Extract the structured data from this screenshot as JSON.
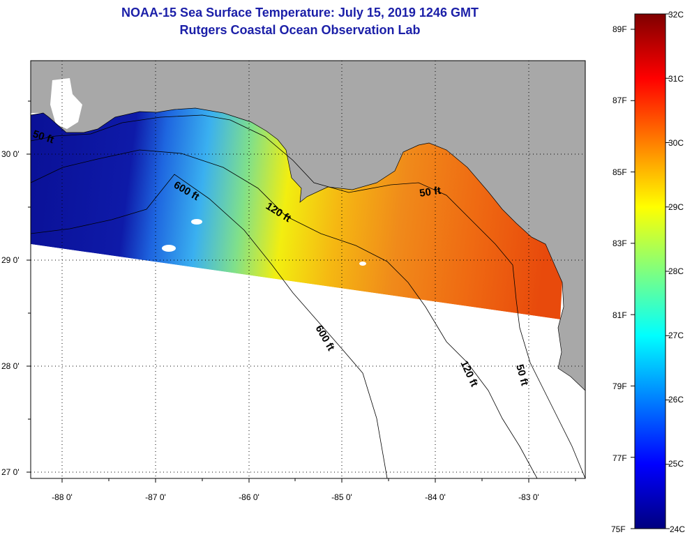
{
  "title": {
    "line1": "NOAA-15 Sea Surface Temperature:  July 15, 2019 1246 GMT",
    "line2": "Rutgers Coastal Ocean Observation Lab"
  },
  "map": {
    "lat_labels": [
      "30 0'",
      "29 0'",
      "28 0'",
      "27 0'"
    ],
    "lon_labels": [
      "-88 0'",
      "-87 0'",
      "-86 0'",
      "-85 0'",
      "-84 0'",
      "-83 0'"
    ],
    "depth_labels": [
      "50 ft",
      "600 ft",
      "120 ft",
      "50 ft",
      "600 ft",
      "120 ft",
      "50 ft"
    ],
    "colors": {
      "land": "#a8a8a8",
      "nodata": "#ffffff",
      "grid": "#000000"
    }
  },
  "colorbar": {
    "fahrenheit": [
      "89F",
      "87F",
      "85F",
      "83F",
      "81F",
      "79F",
      "77F",
      "75F"
    ],
    "celsius": [
      "32C",
      "31C",
      "30C",
      "29C",
      "28C",
      "27C",
      "26C",
      "25C",
      "24C"
    ],
    "stops": [
      "#00007f",
      "#0000ff",
      "#007fff",
      "#00ffff",
      "#7fff7f",
      "#ffff00",
      "#ff7f00",
      "#ff0000",
      "#7f0000"
    ]
  }
}
